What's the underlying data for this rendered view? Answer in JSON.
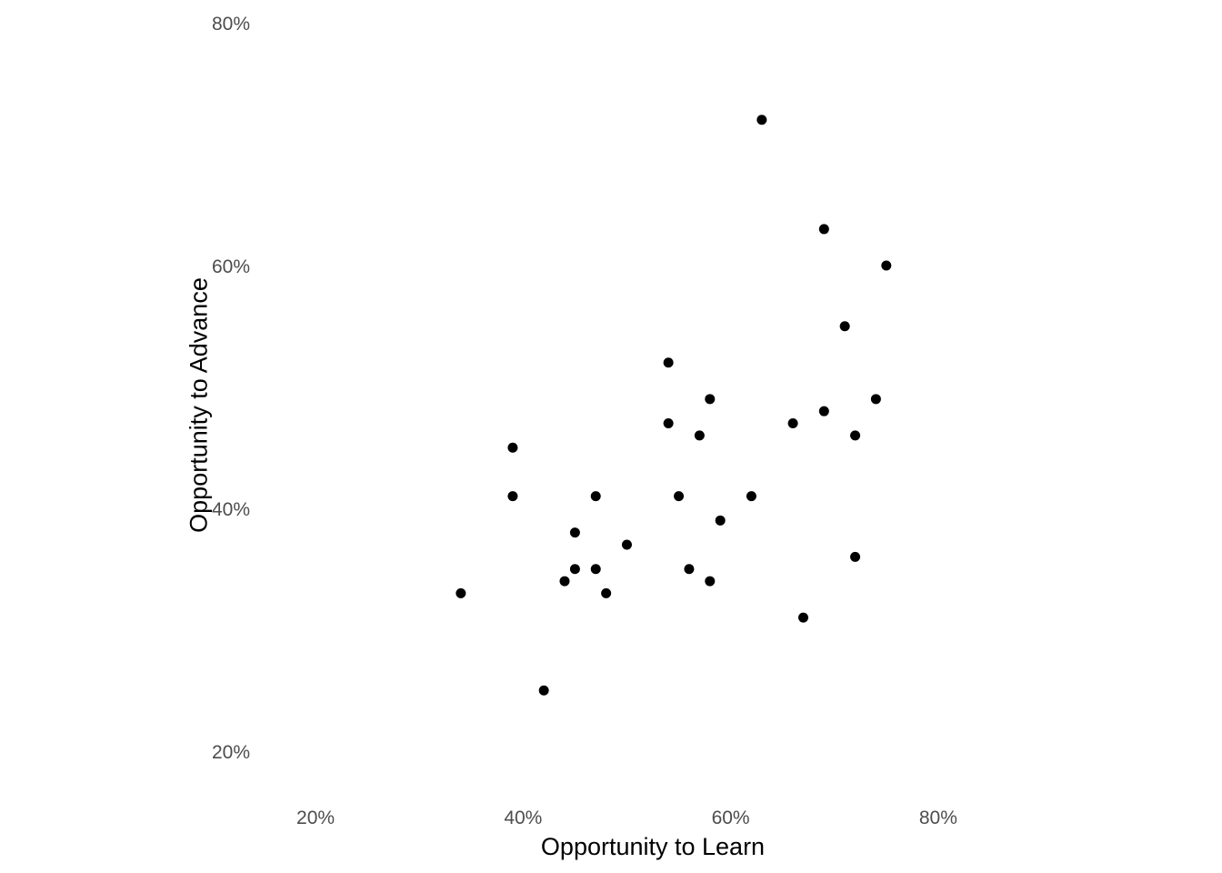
{
  "chart_data": {
    "type": "scatter",
    "title": "",
    "xlabel": "Opportunity to Learn",
    "ylabel": "Opportunity to Advance",
    "xlim": [
      0.15,
      0.9
    ],
    "ylim": [
      0.17,
      0.8
    ],
    "x_ticks": [
      {
        "value": 0.2,
        "label": "20%"
      },
      {
        "value": 0.4,
        "label": "40%"
      },
      {
        "value": 0.6,
        "label": "60%"
      },
      {
        "value": 0.8,
        "label": "80%"
      }
    ],
    "y_ticks": [
      {
        "value": 0.2,
        "label": "20%"
      },
      {
        "value": 0.4,
        "label": "40%"
      },
      {
        "value": 0.6,
        "label": "60%"
      },
      {
        "value": 0.8,
        "label": "80%"
      }
    ],
    "grid": false,
    "legend": "none",
    "point_color": "#000000",
    "points": [
      {
        "x": 0.34,
        "y": 0.33
      },
      {
        "x": 0.39,
        "y": 0.45
      },
      {
        "x": 0.39,
        "y": 0.41
      },
      {
        "x": 0.42,
        "y": 0.25
      },
      {
        "x": 0.44,
        "y": 0.34
      },
      {
        "x": 0.45,
        "y": 0.38
      },
      {
        "x": 0.45,
        "y": 0.35
      },
      {
        "x": 0.47,
        "y": 0.41
      },
      {
        "x": 0.47,
        "y": 0.35
      },
      {
        "x": 0.48,
        "y": 0.33
      },
      {
        "x": 0.5,
        "y": 0.37
      },
      {
        "x": 0.54,
        "y": 0.52
      },
      {
        "x": 0.54,
        "y": 0.47
      },
      {
        "x": 0.55,
        "y": 0.41
      },
      {
        "x": 0.56,
        "y": 0.35
      },
      {
        "x": 0.57,
        "y": 0.46
      },
      {
        "x": 0.58,
        "y": 0.49
      },
      {
        "x": 0.58,
        "y": 0.34
      },
      {
        "x": 0.59,
        "y": 0.39
      },
      {
        "x": 0.62,
        "y": 0.41
      },
      {
        "x": 0.63,
        "y": 0.72
      },
      {
        "x": 0.66,
        "y": 0.47
      },
      {
        "x": 0.67,
        "y": 0.31
      },
      {
        "x": 0.69,
        "y": 0.63
      },
      {
        "x": 0.69,
        "y": 0.48
      },
      {
        "x": 0.71,
        "y": 0.55
      },
      {
        "x": 0.72,
        "y": 0.46
      },
      {
        "x": 0.72,
        "y": 0.36
      },
      {
        "x": 0.74,
        "y": 0.49
      },
      {
        "x": 0.75,
        "y": 0.6
      }
    ]
  }
}
